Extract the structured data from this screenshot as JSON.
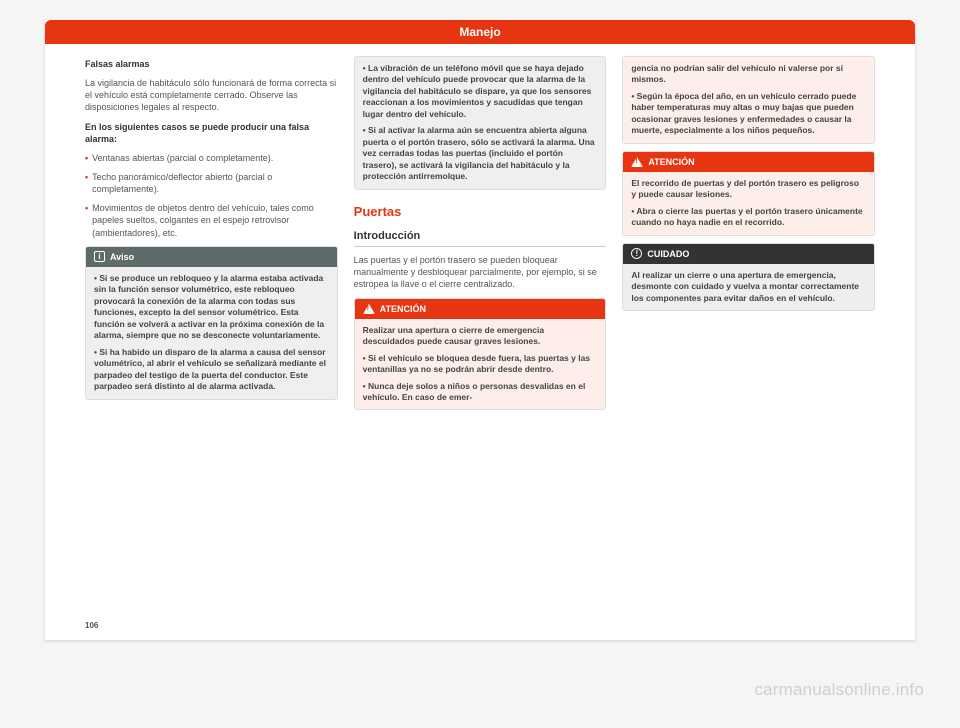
{
  "header": {
    "title": "Manejo"
  },
  "pageNumber": "106",
  "watermark": "carmanualsonline.info",
  "col1": {
    "h1": "Falsas alarmas",
    "p1": "La vigilancia de habitáculo sólo funcionará de forma correcta si el vehículo está completamente cerrado. Observe las disposiciones legales al respecto.",
    "h2": "En los siguientes casos se puede producir una falsa alarma:",
    "b1": "Ventanas abiertas (parcial o completamente).",
    "b2": "Techo panorámico/deflector abierto (parcial o completamente).",
    "b3": "Movimientos de objetos dentro del vehículo, tales como papeles sueltos, colgantes en el espejo retrovisor (ambientadores), etc.",
    "aviso": {
      "label": "Aviso",
      "p1": "• Si se produce un rebloqueo y la alarma estaba activada sin la función sensor volumétrico, este rebloqueo provocará la conexión de la alarma con todas sus funciones, excepto la del sensor volumétrico. Esta función se volverá a activar en la próxima conexión de la alarma, siempre que no se desconecte voluntariamente.",
      "p2": "• Si ha habido un disparo de la alarma a causa del sensor volumétrico, al abrir el vehículo se señalizará mediante el parpadeo del testigo de la puerta del conductor. Este parpadeo será distinto al de alarma activada."
    }
  },
  "col2": {
    "boxTop": {
      "p1": "• La vibración de un teléfono móvil que se haya dejado dentro del vehículo puede provocar que la alarma de la vigilancia del habitáculo se dispare, ya que los sensores reaccionan a los movimientos y sacudidas que tengan lugar dentro del vehículo.",
      "p2": "• Si al activar la alarma aún se encuentra abierta alguna puerta o el portón trasero, sólo se activará la alarma. Una vez cerradas todas las puertas (incluido el portón trasero), se activará la vigilancia del habitáculo y la protección antirremolque."
    },
    "section": "Puertas",
    "sub": "Introducción",
    "p1": "Las puertas y el portón trasero se pueden bloquear manualmente y desbloquear parcialmente, por ejemplo, si se estropea la llave o el cierre centralizado.",
    "atencion": {
      "label": "ATENCIÓN",
      "p1": "Realizar una apertura o cierre de emergencia descuidados puede causar graves lesiones.",
      "p2": "• Si el vehículo se bloquea desde fuera, las puertas y las ventanillas ya no se podrán abrir desde dentro.",
      "p3": "• Nunca deje solos a niños o personas desvalidas en el vehículo. En caso de emer-"
    }
  },
  "col3": {
    "atencionCont": {
      "p1": "gencia no podrían salir del vehículo ni valerse por sí mismos.",
      "p2": "• Según la época del año, en un vehículo cerrado puede haber temperaturas muy altas o muy bajas que pueden ocasionar graves lesiones y enfermedades o causar la muerte, especialmente a los niños pequeños."
    },
    "atencion2": {
      "label": "ATENCIÓN",
      "p1": "El recorrido de puertas y del portón trasero es peligroso y puede causar lesiones.",
      "p2": "• Abra o cierre las puertas y el portón trasero únicamente cuando no haya nadie en el recorrido."
    },
    "cuidado": {
      "label": "CUIDADO",
      "p1": "Al realizar un cierre o una apertura de emergencia, desmonte con cuidado y vuelva a montar correctamente los componentes para evitar daños en el vehículo."
    }
  }
}
